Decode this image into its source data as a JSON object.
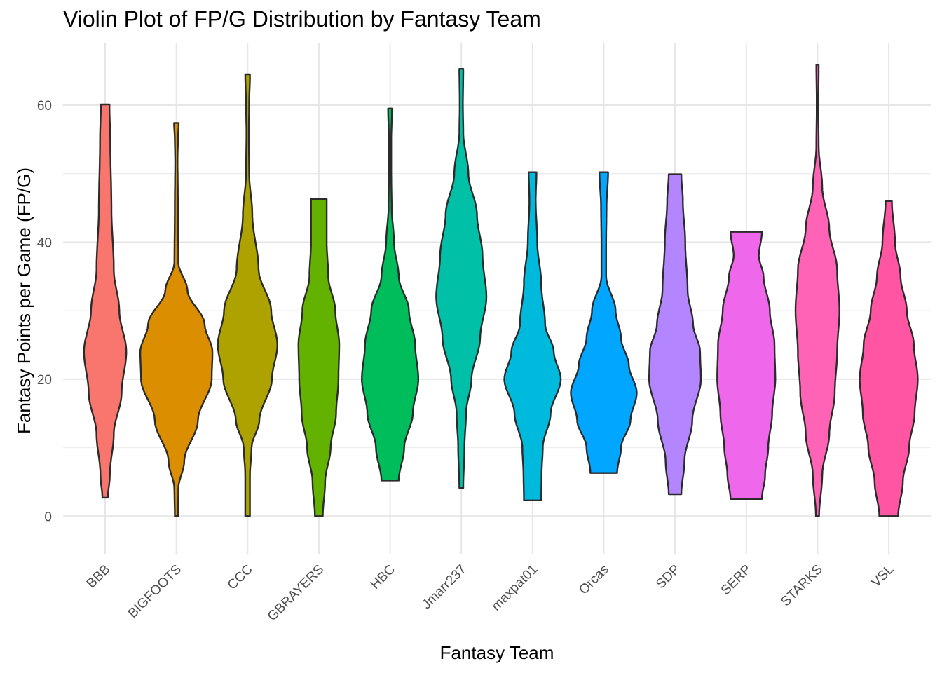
{
  "chart_data": {
    "type": "violin",
    "title": "Violin Plot of FP/G Distribution by Fantasy Team",
    "xlabel": "Fantasy Team",
    "ylabel": "Fantasy Points per Game (FP/G)",
    "ylim": [
      -5.5,
      69
    ],
    "yticks": [
      0,
      20,
      40,
      60
    ],
    "grid": true,
    "legend": "none",
    "categories": [
      "BBB",
      "BIGFOOTS",
      "CCC",
      "GBRAYERS",
      "HBC",
      "Jmarr237",
      "maxpat01",
      "Orcas",
      "SDP",
      "SERP",
      "STARKS",
      "VSL"
    ],
    "series": [
      {
        "category": "BBB",
        "color": "#F8766D",
        "min": 2.7,
        "max": 60.1,
        "profile": [
          [
            2.7,
            0.07
          ],
          [
            6,
            0.12
          ],
          [
            12,
            0.22
          ],
          [
            18,
            0.42
          ],
          [
            24,
            0.54
          ],
          [
            30,
            0.36
          ],
          [
            36,
            0.22
          ],
          [
            45,
            0.16
          ],
          [
            55,
            0.13
          ],
          [
            60.1,
            0.11
          ]
        ]
      },
      {
        "category": "BIGFOOTS",
        "color": "#DB8E00",
        "min": 0,
        "max": 57.4,
        "profile": [
          [
            0,
            0.04
          ],
          [
            4,
            0.05
          ],
          [
            8,
            0.2
          ],
          [
            14,
            0.55
          ],
          [
            20,
            0.9
          ],
          [
            24,
            0.92
          ],
          [
            28,
            0.72
          ],
          [
            33,
            0.28
          ],
          [
            37,
            0.05
          ],
          [
            45,
            0.04
          ],
          [
            52,
            0.03
          ],
          [
            55,
            0.04
          ],
          [
            57.4,
            0.06
          ]
        ]
      },
      {
        "category": "CCC",
        "color": "#AEA200",
        "min": 0,
        "max": 64.5,
        "profile": [
          [
            0,
            0.06
          ],
          [
            6,
            0.06
          ],
          [
            10,
            0.1
          ],
          [
            14,
            0.3
          ],
          [
            20,
            0.62
          ],
          [
            25,
            0.76
          ],
          [
            30,
            0.6
          ],
          [
            36,
            0.28
          ],
          [
            44,
            0.12
          ],
          [
            50,
            0.04
          ],
          [
            56,
            0.03
          ],
          [
            60,
            0.04
          ],
          [
            64.5,
            0.06
          ]
        ]
      },
      {
        "category": "GBRAYERS",
        "color": "#64B200",
        "min": 0,
        "max": 46.3,
        "profile": [
          [
            0,
            0.1
          ],
          [
            5,
            0.16
          ],
          [
            10,
            0.3
          ],
          [
            15,
            0.44
          ],
          [
            20,
            0.5
          ],
          [
            25,
            0.52
          ],
          [
            30,
            0.42
          ],
          [
            35,
            0.24
          ],
          [
            40,
            0.2
          ],
          [
            46.3,
            0.2
          ]
        ]
      },
      {
        "category": "HBC",
        "color": "#00BD5C",
        "min": 5.2,
        "max": 59.5,
        "profile": [
          [
            5.2,
            0.22
          ],
          [
            10,
            0.36
          ],
          [
            15,
            0.58
          ],
          [
            20,
            0.72
          ],
          [
            25,
            0.64
          ],
          [
            30,
            0.48
          ],
          [
            35,
            0.22
          ],
          [
            40,
            0.1
          ],
          [
            45,
            0.04
          ],
          [
            50,
            0.03
          ],
          [
            55,
            0.03
          ],
          [
            59.5,
            0.05
          ]
        ]
      },
      {
        "category": "Jmarr237",
        "color": "#00C1A7",
        "min": 4.1,
        "max": 65.3,
        "profile": [
          [
            4.1,
            0.05
          ],
          [
            10,
            0.08
          ],
          [
            15,
            0.12
          ],
          [
            20,
            0.26
          ],
          [
            26,
            0.48
          ],
          [
            32,
            0.64
          ],
          [
            38,
            0.54
          ],
          [
            44,
            0.4
          ],
          [
            50,
            0.18
          ],
          [
            56,
            0.05
          ],
          [
            60,
            0.04
          ],
          [
            65.3,
            0.05
          ]
        ]
      },
      {
        "category": "maxpat01",
        "color": "#00BADE",
        "min": 2.3,
        "max": 50.2,
        "profile": [
          [
            2.3,
            0.22
          ],
          [
            6,
            0.23
          ],
          [
            10,
            0.26
          ],
          [
            15,
            0.46
          ],
          [
            20,
            0.72
          ],
          [
            24,
            0.54
          ],
          [
            28,
            0.32
          ],
          [
            34,
            0.22
          ],
          [
            40,
            0.12
          ],
          [
            46,
            0.08
          ],
          [
            50.2,
            0.1
          ]
        ]
      },
      {
        "category": "Orcas",
        "color": "#00A6FF",
        "min": 6.3,
        "max": 50.2,
        "profile": [
          [
            6.3,
            0.34
          ],
          [
            10,
            0.44
          ],
          [
            14,
            0.68
          ],
          [
            18,
            0.84
          ],
          [
            22,
            0.64
          ],
          [
            26,
            0.44
          ],
          [
            30,
            0.3
          ],
          [
            35,
            0.06
          ],
          [
            40,
            0.06
          ],
          [
            45,
            0.07
          ],
          [
            50.2,
            0.11
          ]
        ]
      },
      {
        "category": "SDP",
        "color": "#B385FF",
        "min": 3.2,
        "max": 49.9,
        "profile": [
          [
            3.2,
            0.16
          ],
          [
            8,
            0.24
          ],
          [
            14,
            0.44
          ],
          [
            20,
            0.66
          ],
          [
            24,
            0.64
          ],
          [
            28,
            0.46
          ],
          [
            33,
            0.32
          ],
          [
            40,
            0.26
          ],
          [
            46,
            0.2
          ],
          [
            49.9,
            0.16
          ]
        ]
      },
      {
        "category": "SERP",
        "color": "#EF67EB",
        "min": 2.5,
        "max": 41.5,
        "profile": [
          [
            2.5,
            0.4
          ],
          [
            6,
            0.48
          ],
          [
            10,
            0.56
          ],
          [
            15,
            0.66
          ],
          [
            20,
            0.74
          ],
          [
            25,
            0.72
          ],
          [
            30,
            0.6
          ],
          [
            35,
            0.44
          ],
          [
            38,
            0.32
          ],
          [
            41.5,
            0.4
          ]
        ]
      },
      {
        "category": "STARKS",
        "color": "#FF63B6",
        "min": 0,
        "max": 65.9,
        "profile": [
          [
            0,
            0.04
          ],
          [
            6,
            0.12
          ],
          [
            12,
            0.3
          ],
          [
            18,
            0.44
          ],
          [
            24,
            0.5
          ],
          [
            30,
            0.56
          ],
          [
            36,
            0.5
          ],
          [
            42,
            0.3
          ],
          [
            48,
            0.12
          ],
          [
            54,
            0.03
          ],
          [
            60,
            0.02
          ],
          [
            65.9,
            0.03
          ]
        ]
      },
      {
        "category": "VSL",
        "color": "#FF55A2",
        "min": 0,
        "max": 46.0,
        "profile": [
          [
            0,
            0.24
          ],
          [
            5,
            0.36
          ],
          [
            10,
            0.52
          ],
          [
            15,
            0.66
          ],
          [
            20,
            0.74
          ],
          [
            25,
            0.64
          ],
          [
            30,
            0.46
          ],
          [
            35,
            0.3
          ],
          [
            40,
            0.16
          ],
          [
            46,
            0.08
          ]
        ]
      }
    ]
  }
}
